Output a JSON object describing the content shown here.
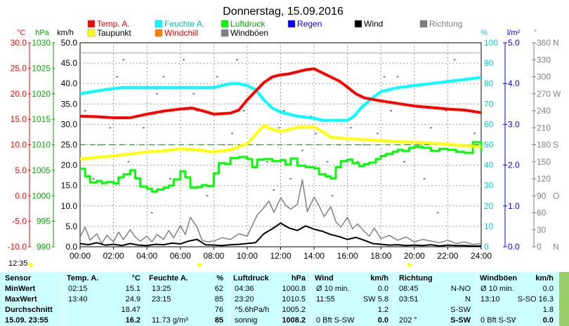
{
  "chart_data": {
    "type": "line",
    "title": "Donnerstag, 15.09.2016",
    "x_ticks": [
      "00:00",
      "02:00",
      "04:00",
      "06:00",
      "08:00",
      "10:00",
      "12:00",
      "14:00",
      "16:00",
      "18:00",
      "20:00",
      "22:00",
      "24:00"
    ],
    "xlim": [
      0,
      24
    ],
    "grid": true,
    "legend": [
      {
        "name": "Temp. A.",
        "color": "#ff0000"
      },
      {
        "name": "Feuchte A.",
        "color": "#00ffff"
      },
      {
        "name": "Luftdruck",
        "color": "#00ff00"
      },
      {
        "name": "Regen",
        "color": "#0000ff"
      },
      {
        "name": "Wind",
        "color": "#000000"
      },
      {
        "name": "Richtung",
        "color": "#808080"
      },
      {
        "name": "Taupunkt",
        "color": "#ffff00"
      },
      {
        "name": "Windchill",
        "color": "#ff8000"
      },
      {
        "name": "Windböen",
        "color": "#808080"
      }
    ],
    "axes": {
      "temp": {
        "unit": "°C",
        "color": "#ff0000",
        "ticks": [
          "30.0",
          "25.0",
          "20.0",
          "15.0",
          "10.0",
          "5.0",
          "0.0",
          "-5.0",
          "-10.0"
        ],
        "ylim": [
          -10,
          30
        ]
      },
      "hpa": {
        "unit": "hPa",
        "color": "#00aa00",
        "ticks": [
          "1030",
          "1025",
          "1020",
          "1015",
          "1010",
          "1005",
          "1000",
          "995",
          "990"
        ],
        "ylim": [
          990,
          1030
        ]
      },
      "kmh": {
        "unit": "km/h",
        "color": "#000000",
        "ticks": [
          "50.0",
          "45.0",
          "40.0",
          "35.0",
          "30.0",
          "25.0",
          "20.0",
          "15.0",
          "10.0",
          "5.0",
          "0.0"
        ],
        "ylim": [
          0,
          50
        ]
      },
      "pct": {
        "unit": "%",
        "color": "#00cccc",
        "ticks": [
          "100",
          "90",
          "80",
          "70",
          "60",
          "50",
          "40",
          "30",
          "20",
          "10",
          "0"
        ],
        "ylim": [
          0,
          100
        ]
      },
      "rain": {
        "unit": "l/m²",
        "color": "#0000ff",
        "ticks": [
          "5.0",
          "4.0",
          "3.0",
          "2.0",
          "1.0",
          "0.0"
        ],
        "ylim": [
          0,
          5
        ]
      },
      "dir": {
        "unit": "°",
        "color": "#808080",
        "ticks": [
          "360",
          "330",
          "300",
          "270",
          "240",
          "210",
          "180",
          "150",
          "120",
          "90",
          "60",
          "30",
          "0"
        ],
        "ylim": [
          0,
          360
        ],
        "compass": [
          {
            "deg": 360,
            "label": "N"
          },
          {
            "deg": 270,
            "label": "W"
          },
          {
            "deg": 180,
            "label": "S"
          },
          {
            "deg": 90,
            "label": "O"
          },
          {
            "deg": 0,
            "label": "N"
          }
        ]
      }
    },
    "series": [
      {
        "name": "Temp. A.",
        "axis": "temp",
        "color": "#ff0000",
        "width": 4,
        "x": [
          0,
          1,
          2,
          3,
          4,
          5,
          6,
          6.7,
          7.5,
          8,
          9,
          9.5,
          10,
          10.5,
          11,
          11.5,
          12,
          12.5,
          13,
          13.5,
          14,
          14.5,
          15,
          15.5,
          16,
          16.5,
          17,
          18,
          19,
          20,
          21,
          22,
          23,
          24
        ],
        "y": [
          15.6,
          15.5,
          15.3,
          15.3,
          16.0,
          16.6,
          17.0,
          17.2,
          16.5,
          16.0,
          16.2,
          16.8,
          18.8,
          20.5,
          22.2,
          23.3,
          23.7,
          23.9,
          24.3,
          24.7,
          24.9,
          24.1,
          23.3,
          22.5,
          21.3,
          20.0,
          19.2,
          18.6,
          18.1,
          17.6,
          17.3,
          17.0,
          16.8,
          16.3
        ]
      },
      {
        "name": "Feuchte A.",
        "axis": "pct",
        "color": "#00ffff",
        "width": 4,
        "x": [
          0,
          0.7,
          1.5,
          2.5,
          3,
          4,
          5,
          6,
          7,
          8,
          8.5,
          9,
          9.5,
          10,
          10.5,
          11,
          11.5,
          12,
          13,
          14,
          14.5,
          15,
          15.5,
          16,
          16.4,
          16.8,
          17.5,
          18,
          18.5,
          19,
          20,
          21,
          22,
          23,
          24
        ],
        "y": [
          75,
          76,
          77,
          78,
          78,
          78,
          78,
          78,
          78,
          78,
          79,
          80,
          80,
          79,
          77,
          72,
          68,
          66,
          64,
          63,
          62,
          62,
          62,
          62,
          64,
          68,
          73,
          76,
          77,
          78,
          79,
          80,
          81,
          82,
          83
        ]
      },
      {
        "name": "Taupunkt",
        "axis": "temp",
        "color": "#ffff00",
        "width": 4,
        "x": [
          0,
          1,
          2,
          3,
          4,
          5,
          6,
          7,
          8,
          9,
          10,
          10.5,
          11,
          11.5,
          12,
          13,
          14,
          14.5,
          15,
          15.5,
          16,
          17,
          18,
          19,
          20,
          21,
          22,
          23,
          24
        ],
        "y": [
          7.2,
          7.5,
          7.8,
          8.2,
          8.6,
          8.8,
          9.2,
          9.0,
          8.6,
          9.0,
          10.2,
          12.0,
          13.8,
          13.0,
          12.6,
          13.4,
          13.5,
          12.6,
          11.5,
          11.3,
          11.2,
          11.0,
          10.8,
          10.6,
          10.5,
          10.3,
          10.1,
          9.8,
          9.6
        ]
      },
      {
        "name": "Luftdruck",
        "axis": "hpa",
        "color": "#00ff00",
        "width": 3,
        "x": [
          0,
          0.3,
          0.6,
          1,
          1.3,
          1.6,
          2,
          2.3,
          2.6,
          3,
          3.3,
          3.6,
          4,
          4.3,
          4.6,
          5,
          5.3,
          5.6,
          6,
          6.3,
          6.6,
          7,
          7.3,
          7.6,
          8,
          8.3,
          8.7,
          9,
          9.5,
          10,
          10.3,
          10.6,
          11,
          11.5,
          12,
          12.3,
          12.6,
          13,
          13.5,
          14,
          14.3,
          14.7,
          15,
          15.3,
          15.6,
          16,
          16.3,
          16.7,
          17,
          17.3,
          17.7,
          18,
          18.3,
          18.7,
          19,
          19.3,
          19.7,
          20,
          20.5,
          21,
          21.5,
          22,
          22.5,
          23,
          23.5,
          24
        ],
        "y": [
          1005.3,
          1003.8,
          1002.6,
          1002.9,
          1002.5,
          1002.7,
          1002.4,
          1003.6,
          1004.2,
          1005.0,
          1003.4,
          1001.8,
          1001.4,
          1000.8,
          1001.2,
          1001.6,
          1002.0,
          1003.2,
          1004.8,
          1003.6,
          1001.6,
          1001.7,
          1002.1,
          1001.9,
          1004.4,
          1006.4,
          1006.2,
          1007.4,
          1007.6,
          1007.2,
          1005.6,
          1007.1,
          1007.2,
          1006.8,
          1007.0,
          1006.1,
          1007.3,
          1005.9,
          1005.6,
          1005.4,
          1004.2,
          1003.8,
          1003.4,
          1005.6,
          1006.8,
          1007.1,
          1006.4,
          1005.8,
          1006.2,
          1006.5,
          1007.2,
          1007.8,
          1008.2,
          1008.6,
          1009.0,
          1008.8,
          1009.4,
          1009.6,
          1009.4,
          1008.8,
          1009.2,
          1009.0,
          1008.6,
          1008.4,
          1010.5,
          1008.8
        ]
      },
      {
        "name": "Wind",
        "axis": "kmh",
        "color": "#000000",
        "width": 2,
        "x": [
          0,
          0.5,
          1,
          1.5,
          2,
          2.5,
          3,
          3.5,
          4,
          4.5,
          5,
          5.5,
          6,
          6.5,
          7,
          7.5,
          8,
          8.5,
          9,
          9.5,
          10,
          10.5,
          11,
          11.5,
          12,
          12.5,
          13,
          13.5,
          14,
          14.5,
          15,
          15.5,
          16,
          16.5,
          17,
          17.5,
          18,
          18.5,
          19,
          19.5,
          20,
          20.5,
          21,
          21.5,
          22,
          22.5,
          23,
          23.5,
          24
        ],
        "y": [
          0.8,
          0.5,
          1.0,
          0.4,
          0.6,
          0.3,
          0.8,
          0.4,
          0.3,
          0.6,
          0.5,
          0.9,
          0.7,
          1.4,
          1.8,
          0.5,
          0.4,
          0.3,
          0.5,
          0.6,
          0.8,
          1.0,
          3.2,
          4.4,
          5.8,
          4.6,
          4.0,
          5.1,
          4.3,
          3.8,
          3.0,
          2.5,
          1.8,
          2.3,
          1.6,
          0.8,
          0.6,
          0.4,
          0.5,
          0.3,
          0.4,
          0.3,
          0.5,
          0.2,
          0.4,
          0.3,
          0.3,
          0.2,
          0.2
        ]
      },
      {
        "name": "Windböen",
        "axis": "kmh",
        "color": "#808080",
        "width": 1.5,
        "x": [
          0,
          0.3,
          0.6,
          1,
          1.3,
          1.6,
          2,
          2.3,
          2.6,
          3,
          3.3,
          3.6,
          4,
          4.3,
          4.6,
          5,
          5.3,
          5.6,
          6,
          6.3,
          6.6,
          7,
          7.3,
          7.6,
          8,
          8.5,
          9,
          9.5,
          10,
          10.3,
          10.6,
          11,
          11.3,
          11.6,
          12,
          12.3,
          12.6,
          13,
          13.3,
          13.6,
          14,
          14.3,
          14.6,
          15,
          15.3,
          15.6,
          16,
          16.3,
          16.6,
          17,
          17.3,
          17.6,
          18,
          18.5,
          19,
          19.5,
          20,
          20.5,
          21,
          21.5,
          22,
          22.5,
          23,
          23.5,
          24
        ],
        "y": [
          2.4,
          4.8,
          1.6,
          3.2,
          0.8,
          2.8,
          1.2,
          3.6,
          1.8,
          4.2,
          2.4,
          1.4,
          2.6,
          1.2,
          3.0,
          1.8,
          4.0,
          2.2,
          5.2,
          3.0,
          7.2,
          4.8,
          1.6,
          1.2,
          1.4,
          2.2,
          1.8,
          3.2,
          2.6,
          5.2,
          7.8,
          9.6,
          11.2,
          8.4,
          12.0,
          10.2,
          9.2,
          10.4,
          16.4,
          8.6,
          12.2,
          10.0,
          7.4,
          9.8,
          6.2,
          4.8,
          7.2,
          4.4,
          5.6,
          3.8,
          2.6,
          4.6,
          2.0,
          2.8,
          1.6,
          2.4,
          1.2,
          1.8,
          1.4,
          1.0,
          1.6,
          0.8,
          1.2,
          0.6,
          0.8
        ]
      }
    ],
    "reference_line": {
      "axis": "temp",
      "y": 10.0,
      "color": "#00aa00",
      "style": "dashed"
    },
    "grey_bar_axis_value": 28.0,
    "direction_points": {
      "axis": "dir",
      "color": "#808080",
      "x": [
        0.3,
        1.1,
        2.2,
        2.9,
        3.8,
        4.6,
        5.4,
        6.2,
        7.0,
        7.6,
        8.2,
        9.1,
        9.8,
        10.6,
        11.2,
        11.9,
        12.6,
        13.3,
        14.1,
        14.8,
        15.5,
        16.2,
        17.0,
        17.8,
        18.6,
        19.4,
        20.2,
        21.0,
        21.9,
        22.8,
        23.6,
        0.8,
        2.6,
        4.3,
        6.8,
        9.4,
        11.6,
        13.8,
        16.6,
        18.2,
        20.6,
        22.4,
        1.8,
        5.0,
        8.6,
        12.2,
        15.1,
        19.0,
        21.4,
        23.2
      ],
      "y": [
        240,
        180,
        300,
        150,
        210,
        270,
        120,
        330,
        240,
        90,
        300,
        200,
        240,
        180,
        150,
        210,
        120,
        170,
        200,
        150,
        180,
        210,
        180,
        200,
        240,
        150,
        180,
        210,
        240,
        180,
        200,
        120,
        330,
        60,
        270,
        330,
        100,
        230,
        150,
        300,
        120,
        330,
        210,
        300,
        180,
        240,
        90,
        300,
        60,
        240
      ]
    }
  },
  "labels": {
    "time_marker": "12:35"
  },
  "stats": {
    "headers": {
      "sensor": "Sensor",
      "temp": "Temp. A.",
      "temp_unit": "°C",
      "hum": "Feuchte A.",
      "hum_unit": "%",
      "press": "Luftdruck",
      "press_unit": "hPa",
      "wind": "Wind",
      "wind_unit": "km/h",
      "dir": "Richtung",
      "gust": "Windböen",
      "gust_unit": "km/h"
    },
    "rows": [
      {
        "label": "MinWert",
        "t_time": "02:15",
        "t_val": "15.1",
        "h_time": "13:25",
        "h_val": "62",
        "p_time": "04:36",
        "p_val": "1000.8",
        "w_time": "Ø 10 min.",
        "w_val": "0.0",
        "d_time": "08:45",
        "d_val": "N-NO",
        "g_time": "Ø 10 min.",
        "g_val": "0.0"
      },
      {
        "label": "MaxWert",
        "t_time": "13:40",
        "t_val": "24.9",
        "h_time": "23:15",
        "h_val": "85",
        "p_time": "23:20",
        "p_val": "1010.5",
        "w_time": "11:55",
        "w_val": "SW 5.8",
        "d_time": "03:51",
        "d_val": "N",
        "g_time": "13:10",
        "g_val": "S-SO 16.3"
      },
      {
        "label": "Durchschnitt",
        "t_time": "",
        "t_val": "18.47",
        "h_time": "",
        "h_val": "76",
        "p_time": "^5.6hPa/h",
        "p_val": "1005.2",
        "w_time": "",
        "w_val": "1.2",
        "d_time": "",
        "d_val": "S-SW",
        "g_time": "",
        "g_val": "1.8"
      },
      {
        "label": "15.09. 23:55",
        "t_time": "",
        "t_val": "16.2",
        "h_time": "11.73 g/m³",
        "h_val": "85",
        "p_time": "sonnig",
        "p_val": "1008.2",
        "w_time": "0 Bft S-SW",
        "w_val": "0.0",
        "d_time": "202 °",
        "d_val": "S-SW",
        "g_time": "0 Bft S-SW",
        "g_val": "0.0"
      }
    ]
  }
}
